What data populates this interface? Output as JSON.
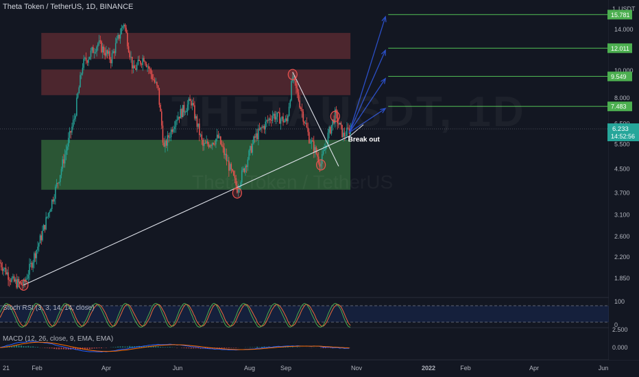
{
  "header": {
    "title": "Theta Token / TetherUS, 1D, BINANCE"
  },
  "watermark": {
    "symbol": "THETAUSDT, 1D",
    "name": "Theta Token / TetherUS"
  },
  "indicators": {
    "stoch_rsi": {
      "label": "Stoch RSI (3, 3, 14, 14, close)",
      "top": "100",
      "bottom": "0"
    },
    "macd": {
      "label": "MACD (12, 26, close, 9, EMA, EMA)",
      "zero": "0.000",
      "top": "2.500"
    }
  },
  "annotation": {
    "text": "Break out"
  },
  "price_axis": {
    "unit": "USDT",
    "ticks": [
      "14.000",
      "10.000",
      "8.000",
      "6.500",
      "5.500",
      "4.500",
      "3.700",
      "3.100",
      "2.600",
      "2.200",
      "1.850"
    ],
    "current_price": "6.233",
    "countdown": "14:52:56",
    "targets": [
      "15.781",
      "12.011",
      "9.549",
      "7.483"
    ]
  },
  "time_axis": {
    "labels": [
      "21",
      "Feb",
      "Apr",
      "Jun",
      "Aug",
      "Sep",
      "Nov",
      "2022",
      "Feb",
      "Apr",
      "Jun"
    ]
  },
  "colors": {
    "up": "#26a69a",
    "down": "#ef5350",
    "target": "#4caf50",
    "arrow": "#2b4fc7",
    "rsi_k": "#4caf50",
    "rsi_d": "#ef6c3a",
    "macd": "#2962ff",
    "signal": "#ff6d00"
  },
  "chart_data": {
    "type": "candlestick",
    "title": "Theta Token / TetherUS, 1D, BINANCE",
    "y_scale": "log",
    "ylim": [
      1.6,
      17.0
    ],
    "x_range": [
      "2021-01-01",
      "2022-06-01"
    ],
    "ohlc": [],
    "zones": [
      {
        "kind": "resistance",
        "from": "2021-02-05",
        "to": "2021-10-25",
        "y_low": 11.0,
        "y_high": 13.6
      },
      {
        "kind": "resistance",
        "from": "2021-02-05",
        "to": "2021-10-25",
        "y_low": 8.2,
        "y_high": 10.1
      },
      {
        "kind": "support",
        "from": "2021-02-05",
        "to": "2021-10-25",
        "y_low": 3.8,
        "y_high": 5.7
      }
    ],
    "trendlines": [
      {
        "kind": "support",
        "from": [
          "2021-01-21",
          1.75
        ],
        "to": [
          "2021-10-25",
          5.9
        ]
      },
      {
        "kind": "descending",
        "from": [
          "2021-09-06",
          9.9
        ],
        "to": [
          "2021-10-15",
          4.6
        ]
      }
    ],
    "targets": [
      15.781,
      12.011,
      9.549,
      7.483
    ],
    "current_price": 6.233
  }
}
